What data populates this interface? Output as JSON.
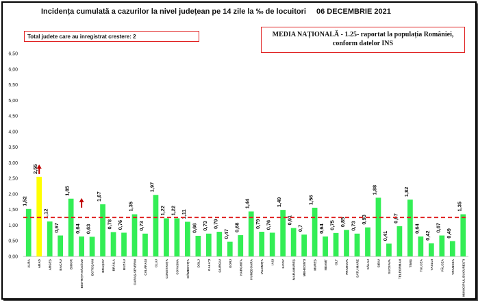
{
  "header": {
    "title": "Incidența cumulată a cazurilor la nivel județean pe 14 zile la ‰ de locuitori",
    "date": "06 DECEMBRIE 2021"
  },
  "info_box_growth": {
    "text": "Total judete care au inregistrat crestere: 2"
  },
  "info_box_national": {
    "line1": "MEDIA NAȚIONALĂ - 1.25-  raportat la populația României,",
    "line2": "conform datelor INS"
  },
  "colors": {
    "bar": "#33ee55",
    "highlight": "#ffff00",
    "mean_line": "#e02020",
    "arrow": "#c00000"
  },
  "chart_data": {
    "type": "bar",
    "categories": [
      "ALBA",
      "ARAD",
      "ARGEȘ",
      "BACĂU",
      "BIHOR",
      "BISTRIȚA-NĂSĂUD",
      "BOTOȘANI",
      "BRAȘOV",
      "BRĂILA",
      "BUZĂU",
      "CARAȘ-SEVERIN",
      "CĂLĂRAȘI",
      "CLUJ",
      "CONSTANȚA",
      "COVASNA",
      "DÂMBOVIȚA",
      "DOLJ",
      "GALAȚI",
      "GIURGIU",
      "GORJ",
      "HARGHITA",
      "HUNEDOARA",
      "IALOMIȚA",
      "IAȘI",
      "ILFOV",
      "MARAMUREȘ",
      "MEHEDINȚI",
      "MUREȘ",
      "NEAMȚ",
      "OLT",
      "PRAHOVA",
      "SATU MARE",
      "SĂLAJ",
      "SIBIU",
      "SUCEAVA",
      "TELEORMAN",
      "TIMIȘ",
      "TULCEA",
      "VASLUI",
      "VÂLCEA",
      "VRANCEA",
      "MUNICIPIUL BUCUREȘTI"
    ],
    "values": [
      1.52,
      2.55,
      1.12,
      0.67,
      1.85,
      0.64,
      0.63,
      1.67,
      0.78,
      0.76,
      1.35,
      0.73,
      1.97,
      1.22,
      1.22,
      1.11,
      0.66,
      0.73,
      0.79,
      0.47,
      0.68,
      1.44,
      0.79,
      0.76,
      1.49,
      0.91,
      0.7,
      1.56,
      0.64,
      0.75,
      0.85,
      0.73,
      0.93,
      1.88,
      0.41,
      0.97,
      1.82,
      0.64,
      0.42,
      0.67,
      0.49,
      1.35
    ],
    "value_labels": [
      "1,52",
      "2,55",
      "1,12",
      "0,67",
      "1,85",
      "0,64",
      "0,63",
      "1,67",
      "0,78",
      "0,76",
      "1,35",
      "0,73",
      "1,97",
      "1,22",
      "1,22",
      "1,11",
      "0,66",
      "0,73",
      "0,79",
      "0,47",
      "0,68",
      "1,44",
      "0,79",
      "0,76",
      "1,49",
      "0,91",
      "0,7",
      "1,56",
      "0,64",
      "0,75",
      "0,85",
      "0,73",
      "0,93",
      "1,88",
      "0,41",
      "0,97",
      "1,82",
      "0,64",
      "0,42",
      "0,67",
      "0,49",
      "1,35"
    ],
    "highlighted": [
      "ARAD"
    ],
    "increase_arrows": [
      "ARAD",
      "BISTRIȚA-NĂSĂUD"
    ],
    "national_mean": 1.25,
    "ylim": [
      0,
      6.5
    ],
    "yticks": [
      0,
      0.5,
      1,
      1.5,
      2,
      2.5,
      3,
      3.5,
      4,
      4.5,
      5,
      5.5,
      6,
      6.5
    ],
    "ytick_labels": [
      "0,00",
      "0,50",
      "1,00",
      "1,50",
      "2,00",
      "2,50",
      "3,00",
      "3,50",
      "4,00",
      "4,50",
      "5,00",
      "5,50",
      "6,00",
      "6,50"
    ],
    "title": "Incidența cumulată a cazurilor la nivel județean pe 14 zile la ‰ de locuitori",
    "xlabel": "",
    "ylabel": ""
  }
}
